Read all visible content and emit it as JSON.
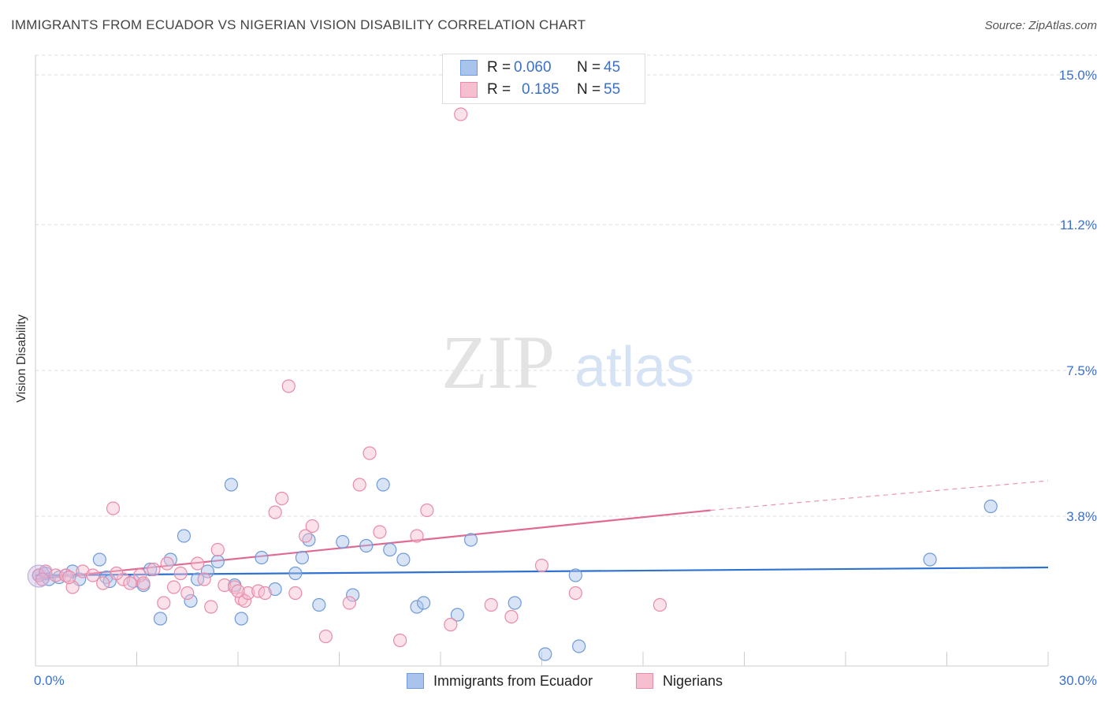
{
  "title": "IMMIGRANTS FROM ECUADOR VS NIGERIAN VISION DISABILITY CORRELATION CHART",
  "source": "Source: ZipAtlas.com",
  "watermark": {
    "zip": "ZIP",
    "atlas": "atlas"
  },
  "stats": [
    {
      "r_label": "R =",
      "r_value": "0.060",
      "n_label": "N =",
      "n_value": "45",
      "color": "#a9c4ec",
      "border": "#6f9ad8"
    },
    {
      "r_label": "R =",
      "r_value": "0.185",
      "n_label": "N =",
      "n_value": "55",
      "color": "#f6bfd0",
      "border": "#e98aa8"
    }
  ],
  "legend": [
    {
      "label": "Immigrants from Ecuador",
      "color": "#a9c4ec",
      "border": "#6f9ad8"
    },
    {
      "label": "Nigerians",
      "color": "#f6bfd0",
      "border": "#e98aa8"
    }
  ],
  "chart_data": {
    "type": "scatter",
    "title": "IMMIGRANTS FROM ECUADOR VS NIGERIAN VISION DISABILITY CORRELATION CHART",
    "xlabel": "",
    "ylabel": "Vision Disability",
    "xlim": [
      0,
      30
    ],
    "ylim": [
      0,
      15.5
    ],
    "x_tick_labels": [
      "0.0%",
      "30.0%"
    ],
    "y_ticks": [
      3.8,
      7.5,
      11.2,
      15.0
    ],
    "y_tick_labels": [
      "3.8%",
      "7.5%",
      "11.2%",
      "15.0%"
    ],
    "grid": true,
    "legend_position": "bottom-center",
    "series": [
      {
        "name": "Immigrants from Ecuador",
        "color": "#6f9ad8",
        "trend": {
          "x": [
            0,
            30
          ],
          "y": [
            2.3,
            2.5
          ],
          "color": "#2f72d1"
        },
        "points": [
          [
            0.1,
            2.3
          ],
          [
            0.3,
            2.35
          ],
          [
            0.4,
            2.2
          ],
          [
            0.7,
            2.25
          ],
          [
            0.9,
            2.3
          ],
          [
            1.1,
            2.4
          ],
          [
            1.3,
            2.2
          ],
          [
            1.9,
            2.7
          ],
          [
            2.1,
            2.25
          ],
          [
            2.2,
            2.15
          ],
          [
            2.9,
            2.15
          ],
          [
            3.2,
            2.05
          ],
          [
            3.4,
            2.45
          ],
          [
            4.0,
            2.7
          ],
          [
            3.7,
            1.2
          ],
          [
            4.4,
            3.3
          ],
          [
            4.6,
            1.65
          ],
          [
            4.8,
            2.2
          ],
          [
            5.1,
            2.4
          ],
          [
            5.4,
            2.65
          ],
          [
            5.8,
            4.6
          ],
          [
            5.9,
            2.05
          ],
          [
            6.1,
            1.2
          ],
          [
            6.7,
            2.75
          ],
          [
            7.1,
            1.95
          ],
          [
            7.7,
            2.35
          ],
          [
            7.9,
            2.75
          ],
          [
            8.1,
            3.2
          ],
          [
            8.4,
            1.55
          ],
          [
            9.1,
            3.15
          ],
          [
            9.4,
            1.8
          ],
          [
            9.8,
            3.05
          ],
          [
            10.3,
            4.6
          ],
          [
            10.5,
            2.95
          ],
          [
            10.9,
            2.7
          ],
          [
            11.3,
            1.5
          ],
          [
            11.5,
            1.6
          ],
          [
            12.5,
            1.3
          ],
          [
            12.9,
            3.2
          ],
          [
            14.2,
            1.6
          ],
          [
            15.1,
            0.3
          ],
          [
            16.0,
            2.3
          ],
          [
            16.1,
            0.5
          ],
          [
            26.5,
            2.7
          ],
          [
            28.3,
            4.05
          ]
        ]
      },
      {
        "name": "Nigerians",
        "color": "#e98aa8",
        "trend": {
          "x": [
            0,
            20
          ],
          "y": [
            2.2,
            3.95
          ],
          "dash_extend": {
            "x": [
              20,
              30
            ],
            "y": [
              3.95,
              4.7
            ]
          },
          "color": "#e06a92"
        },
        "points": [
          [
            0.1,
            2.3
          ],
          [
            0.3,
            2.4
          ],
          [
            0.6,
            2.3
          ],
          [
            0.9,
            2.3
          ],
          [
            1.1,
            2.0
          ],
          [
            1.4,
            2.4
          ],
          [
            1.7,
            2.3
          ],
          [
            2.0,
            2.1
          ],
          [
            2.3,
            4.0
          ],
          [
            2.6,
            2.2
          ],
          [
            2.8,
            2.1
          ],
          [
            3.1,
            2.3
          ],
          [
            3.2,
            2.1
          ],
          [
            3.5,
            2.45
          ],
          [
            3.8,
            1.6
          ],
          [
            4.1,
            2.0
          ],
          [
            4.3,
            2.35
          ],
          [
            4.5,
            1.85
          ],
          [
            4.8,
            2.6
          ],
          [
            5.0,
            2.2
          ],
          [
            5.2,
            1.5
          ],
          [
            5.4,
            2.95
          ],
          [
            5.6,
            2.05
          ],
          [
            5.9,
            2.0
          ],
          [
            6.1,
            1.7
          ],
          [
            6.2,
            1.65
          ],
          [
            6.3,
            1.85
          ],
          [
            6.6,
            1.9
          ],
          [
            6.8,
            1.85
          ],
          [
            7.1,
            3.9
          ],
          [
            7.3,
            4.25
          ],
          [
            7.5,
            7.1
          ],
          [
            7.7,
            1.85
          ],
          [
            8.0,
            3.3
          ],
          [
            8.2,
            3.55
          ],
          [
            8.6,
            0.75
          ],
          [
            9.3,
            1.6
          ],
          [
            9.6,
            4.6
          ],
          [
            9.9,
            5.4
          ],
          [
            10.2,
            3.4
          ],
          [
            10.8,
            0.65
          ],
          [
            11.3,
            3.3
          ],
          [
            11.6,
            3.95
          ],
          [
            12.3,
            1.05
          ],
          [
            12.6,
            14.0
          ],
          [
            13.5,
            1.55
          ],
          [
            14.1,
            1.25
          ],
          [
            15.0,
            2.55
          ],
          [
            16.0,
            1.85
          ],
          [
            18.5,
            1.55
          ],
          [
            0.2,
            2.2
          ],
          [
            1.0,
            2.25
          ],
          [
            2.4,
            2.35
          ],
          [
            3.9,
            2.6
          ],
          [
            6.0,
            1.9
          ]
        ]
      }
    ]
  }
}
